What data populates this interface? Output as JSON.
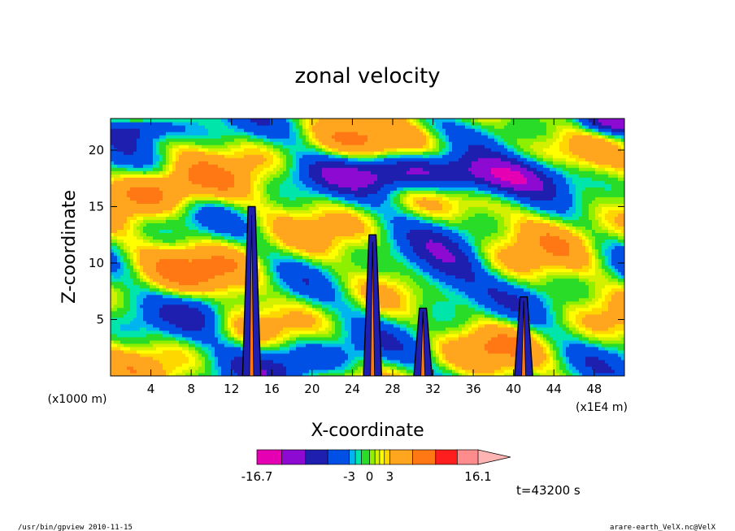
{
  "chart_data": {
    "type": "heatmap",
    "title": "zonal velocity",
    "xlabel": "X-coordinate",
    "ylabel": "Z-coordinate",
    "x_unit_label": "(x1E4 m)",
    "y_unit_label": "(x1000 m)",
    "xlim": [
      0,
      51
    ],
    "ylim": [
      0,
      22.8
    ],
    "x_ticks": [
      4,
      8,
      12,
      16,
      20,
      24,
      28,
      32,
      36,
      40,
      44,
      48
    ],
    "y_ticks": [
      5,
      10,
      15,
      20
    ],
    "x_tick_labels": [
      "4",
      "8",
      "12",
      "16",
      "20",
      "24",
      "28",
      "32",
      "36",
      "40",
      "44",
      "48"
    ],
    "y_tick_labels": [
      "5",
      "10",
      "15",
      "20"
    ],
    "colorbar": {
      "levels": [
        -16.7,
        -13.0,
        -9.5,
        -6.2,
        -3.0,
        -2.1,
        -1.2,
        0,
        0.8,
        1.5,
        2.2,
        3.0,
        6.4,
        9.8,
        13.0,
        16.1
      ],
      "colors": [
        "#e600b4",
        "#8c0ad2",
        "#1e1eaf",
        "#0050e6",
        "#00b4f0",
        "#00e6aa",
        "#28dc28",
        "#8cf000",
        "#d2f000",
        "#ffff00",
        "#ffd700",
        "#ffa51e",
        "#ff7814",
        "#ff1e1e",
        "#ff8c8c",
        "#ffb4b4"
      ],
      "labels": [
        "-16.7",
        "-3",
        "0",
        "3",
        "16.1"
      ],
      "label_values": [
        -16.7,
        -3,
        0,
        3,
        16.1
      ]
    },
    "features": [
      {
        "kind": "updraft-core",
        "x": 14.0,
        "z_top": 15.0
      },
      {
        "kind": "updraft-core",
        "x": 26.0,
        "z_top": 12.5
      },
      {
        "kind": "updraft-core",
        "x": 31.0,
        "z_top": 6.0
      },
      {
        "kind": "updraft-core",
        "x": 41.0,
        "z_top": 7.0
      }
    ]
  },
  "annotations": {
    "time_label": "t=43200 s",
    "footer_left": "/usr/bin/gpview  2010-11-15",
    "footer_right": "arare-earth_VelX.nc@VelX"
  }
}
